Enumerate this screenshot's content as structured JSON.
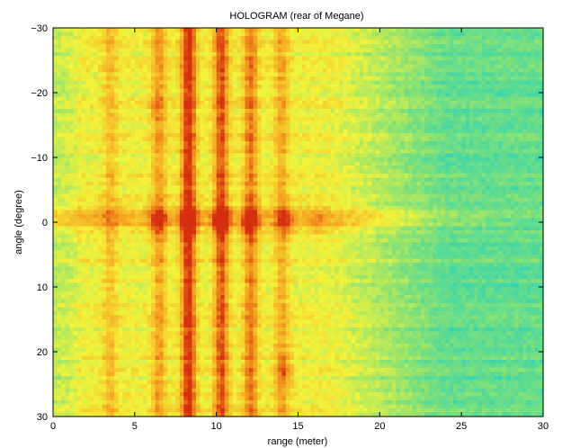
{
  "chart_data": {
    "type": "heatmap",
    "title": "HOLOGRAM (rear of Megane)",
    "xlabel": "range (meter)",
    "ylabel": "angle (degree)",
    "xlim": [
      0,
      30
    ],
    "ylim": [
      -30,
      30
    ],
    "y_reversed": true,
    "x_ticks": [
      "0",
      "5",
      "10",
      "15",
      "20",
      "25",
      "30"
    ],
    "y_ticks": [
      "−30",
      "−20",
      "−10",
      "0",
      "10",
      "20",
      "30"
    ],
    "grid": false,
    "legend": "none",
    "colormap": [
      "#1fd1c0",
      "#7fe07a",
      "#f3f33a",
      "#f5a21f",
      "#d62f10"
    ],
    "range_bands": [
      {
        "range": 8.3,
        "intensity": 0.95
      },
      {
        "range": 10.3,
        "intensity": 0.78
      },
      {
        "range": 12.1,
        "intensity": 0.62
      },
      {
        "range": 6.5,
        "intensity": 0.45
      },
      {
        "range": 14.0,
        "intensity": 0.4
      },
      {
        "range": 3.5,
        "intensity": 0.3
      }
    ],
    "angle_bands": [
      {
        "angle": 0,
        "intensity": 0.55
      },
      {
        "angle": -1.5,
        "intensity": 0.3
      }
    ],
    "bright_spots": [
      {
        "range": 10.3,
        "angle": 0,
        "intensity": 0.9
      },
      {
        "range": 8.3,
        "angle": 0,
        "intensity": 0.85
      },
      {
        "range": 12.1,
        "angle": 0,
        "intensity": 0.7
      },
      {
        "range": 6.4,
        "angle": 0,
        "intensity": 0.6
      },
      {
        "range": 14.3,
        "angle": 0,
        "intensity": 0.55
      },
      {
        "range": 16.2,
        "angle": 0,
        "intensity": 0.4
      },
      {
        "range": 14.2,
        "angle": 23,
        "intensity": 0.6
      },
      {
        "range": 6.3,
        "angle": -18,
        "intensity": 0.35
      }
    ]
  }
}
